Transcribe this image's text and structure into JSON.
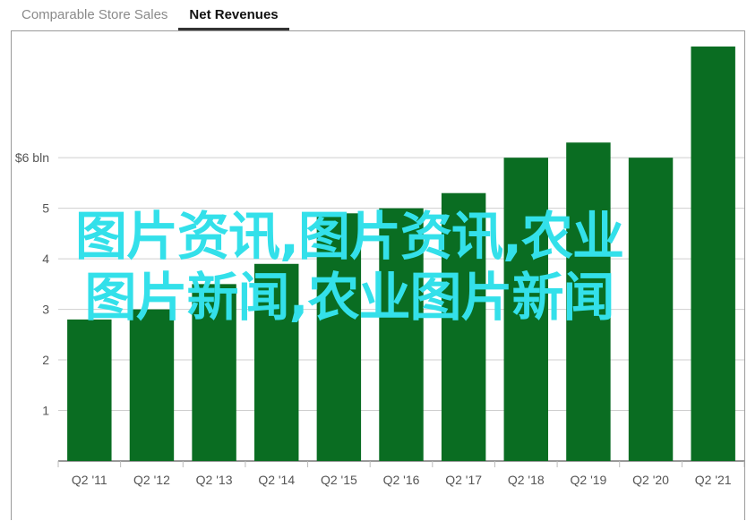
{
  "tabs": [
    {
      "label": "Comparable Store Sales",
      "active": false
    },
    {
      "label": "Net Revenues",
      "active": true
    }
  ],
  "overlay": {
    "line1": "图片资讯,图片资讯,农业",
    "line2": "图片新闻,农业图片新闻",
    "color": "#33e0ea"
  },
  "chart_data": {
    "type": "bar",
    "categories": [
      "Q2 '11",
      "Q2 '12",
      "Q2 '13",
      "Q2 '14",
      "Q2 '15",
      "Q2 '16",
      "Q2 '17",
      "Q2 '18",
      "Q2 '19",
      "Q2 '20",
      "Q2 '21"
    ],
    "values": [
      2.8,
      3.0,
      3.5,
      3.9,
      4.9,
      5.0,
      5.3,
      6.0,
      6.3,
      6.0,
      8.2
    ],
    "yticks": [
      {
        "value": 1,
        "label": "1"
      },
      {
        "value": 2,
        "label": "2"
      },
      {
        "value": 3,
        "label": "3"
      },
      {
        "value": 4,
        "label": "4"
      },
      {
        "value": 5,
        "label": "5"
      },
      {
        "value": 6,
        "label": "$6 bln"
      }
    ],
    "ylim": [
      0,
      8.5
    ],
    "grid": true,
    "bar_color": "#0a6d22",
    "title": "",
    "xlabel": "",
    "ylabel": ""
  }
}
